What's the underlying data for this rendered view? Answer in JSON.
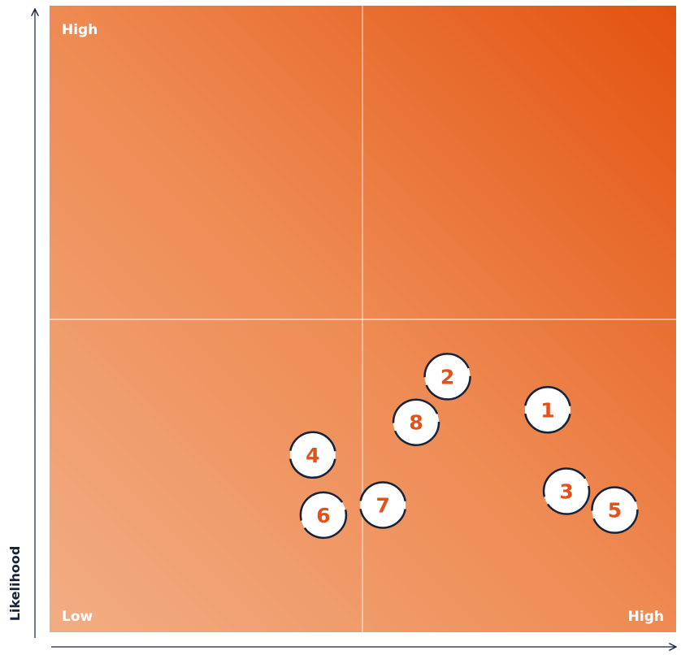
{
  "chart_data": {
    "type": "scatter",
    "title": "",
    "xlabel": "",
    "ylabel": "Likelihood",
    "xlim": [
      0,
      1
    ],
    "ylim": [
      0,
      1
    ],
    "quadrant_split": {
      "x": 0.5,
      "y": 0.5
    },
    "corner_labels": {
      "y_high": "High",
      "x_low": "Low",
      "x_high": "High"
    },
    "points": [
      {
        "label": "1",
        "x": 0.795,
        "y": 0.355
      },
      {
        "label": "2",
        "x": 0.635,
        "y": 0.408
      },
      {
        "label": "3",
        "x": 0.825,
        "y": 0.225
      },
      {
        "label": "4",
        "x": 0.42,
        "y": 0.283
      },
      {
        "label": "5",
        "x": 0.902,
        "y": 0.195
      },
      {
        "label": "6",
        "x": 0.437,
        "y": 0.187
      },
      {
        "label": "7",
        "x": 0.532,
        "y": 0.203
      },
      {
        "label": "8",
        "x": 0.585,
        "y": 0.335
      }
    ],
    "colors": {
      "gradient_low": "#f2ad84",
      "gradient_mid": "#ee8a52",
      "gradient_high": "#e3520f",
      "marker_fill": "#ffffff",
      "marker_text": "#e2511a",
      "marker_ring": "#17223b",
      "axis": "#17223b"
    }
  }
}
